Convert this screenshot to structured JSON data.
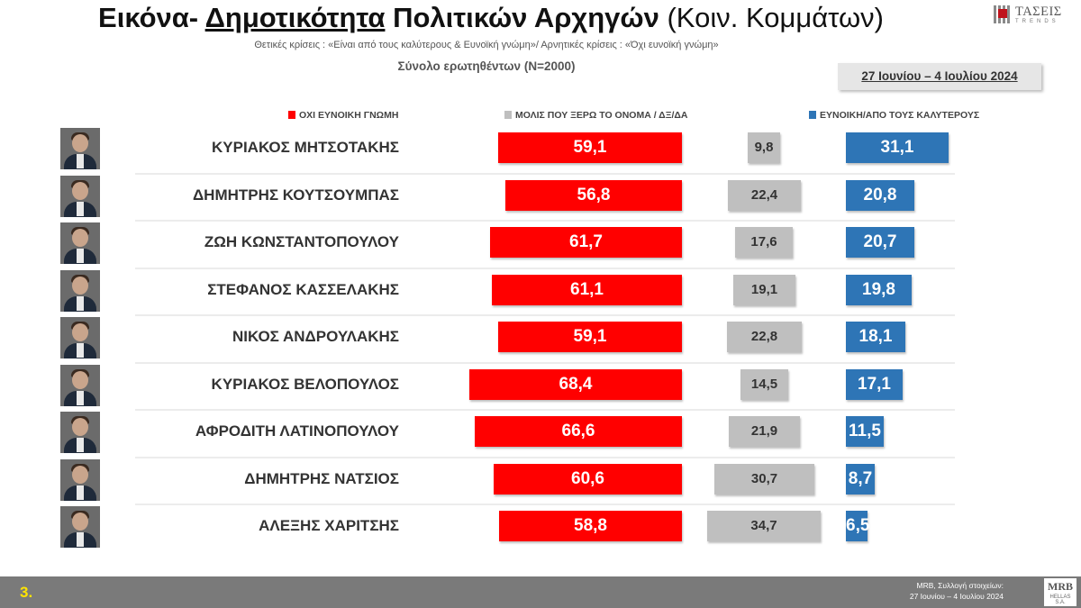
{
  "header": {
    "title_part1": "Εικόνα- ",
    "title_part2": "Δημοτικότητα",
    "title_part3": " Πολιτικών Αρχηγών",
    "title_part4": " (Κοιν. Κομμάτων)",
    "subtitle": "Θετικές κρίσεις : «Είναι από τους καλύτερους &  Ευνοϊκή γνώμη»/ Αρνητικές κρίσεις : «Όχι ευνοϊκή γνώμη»",
    "sample": "Σύνολο ερωτηθέντων (N=2000)",
    "date_range": "27 Ιουνίου – 4  Ιουλίου 2024",
    "logo_text": "ΤΑΣΕΙΣ",
    "logo_subtext": "TRENDS"
  },
  "colors": {
    "red": "#ff0000",
    "gray": "#bfbfbf",
    "blue": "#2e75b6",
    "footer": "#7a7a7a",
    "page_number": "#ffe400"
  },
  "chart_data": {
    "type": "bar",
    "categories": [
      "ΚΥΡΙΑΚΟΣ ΜΗΤΣΟΤΑΚΗΣ",
      "ΔΗΜΗΤΡΗΣ ΚΟΥΤΣΟΥΜΠΑΣ",
      "ΖΩΗ ΚΩΝΣΤΑΝΤΟΠΟΥΛΟΥ",
      "ΣΤΕΦΑΝΟΣ ΚΑΣΣΕΛΑΚΗΣ",
      "ΝΙΚΟΣ ΑΝΔΡΟΥΛΑΚΗΣ",
      "ΚΥΡΙΑΚΟΣ ΒΕΛΟΠΟΥΛΟΣ",
      "ΑΦΡΟΔΙΤΗ ΛΑΤΙΝΟΠΟΥΛΟΥ",
      "ΔΗΜΗΤΡΗΣ ΝΑΤΣΙΟΣ",
      "ΑΛΕΞΗΣ ΧΑΡΙΤΣΗΣ"
    ],
    "series": [
      {
        "name": "ΟΧΙ ΕΥΝΟΙΚΗ ΓΝΩΜΗ",
        "color": "#ff0000",
        "values": [
          59.1,
          56.8,
          61.7,
          61.1,
          59.1,
          68.4,
          66.6,
          60.6,
          58.8
        ],
        "labels": [
          "59,1",
          "56,8",
          "61,7",
          "61,1",
          "59,1",
          "68,4",
          "66,6",
          "60,6",
          "58,8"
        ]
      },
      {
        "name": "ΜΟΛΙΣ ΠΟΥ ΞΕΡΩ ΤΟ ΟΝΟΜΑ /  ΔΞ/ΔΑ",
        "color": "#bfbfbf",
        "values": [
          9.8,
          22.4,
          17.6,
          19.1,
          22.8,
          14.5,
          21.9,
          30.7,
          34.7
        ],
        "labels": [
          "9,8",
          "22,4",
          "17,6",
          "19,1",
          "22,8",
          "14,5",
          "21,9",
          "30,7",
          "34,7"
        ]
      },
      {
        "name": "ΕΥΝΟΙΚΗ/ΑΠΟ ΤΟΥΣ ΚΑΛΥΤΕΡΟΥΣ",
        "color": "#2e75b6",
        "values": [
          31.1,
          20.8,
          20.7,
          19.8,
          18.1,
          17.1,
          11.5,
          8.7,
          6.5
        ],
        "labels": [
          "31,1",
          "20,8",
          "20,7",
          "19,8",
          "18,1",
          "17,1",
          "11,5",
          "8,7",
          "6,5"
        ]
      }
    ],
    "title": "",
    "xlabel": "",
    "ylabel": "",
    "legend_position": "top",
    "grid": false
  },
  "footer": {
    "page_number": "3.",
    "credit_line1": "MRB, Συλλογή στοιχείων:",
    "credit_line2": "27 Ιουνίου – 4 Ιουλίου 2024",
    "logo": "MRB",
    "logo_sub": "HELLAS S.A."
  }
}
